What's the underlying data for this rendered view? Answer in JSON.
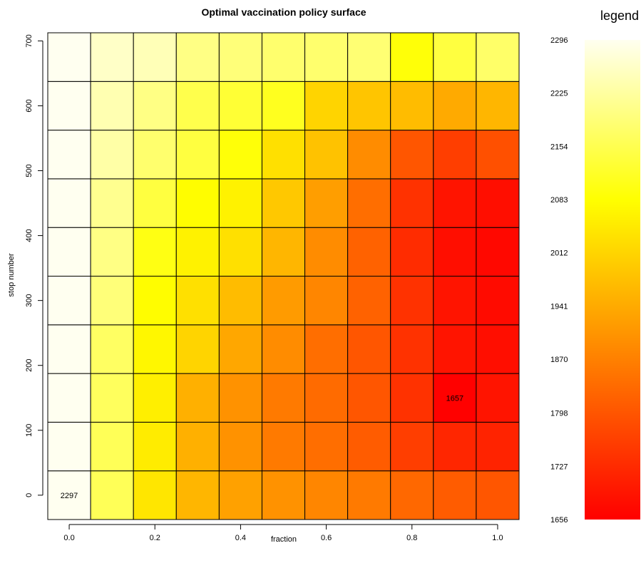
{
  "chart_data": {
    "type": "heatmap",
    "title": "Optimal vaccination policy surface",
    "xlabel": "fraction",
    "ylabel": "stop number",
    "x": [
      0.0,
      0.1,
      0.2,
      0.3,
      0.4,
      0.5,
      0.6,
      0.7,
      0.8,
      0.9,
      1.0
    ],
    "y": [
      0,
      75,
      150,
      225,
      300,
      375,
      450,
      525,
      600,
      675
    ],
    "xticks": [
      0.0,
      0.2,
      0.4,
      0.6,
      0.8,
      1.0
    ],
    "xtick_labels": [
      "0.0",
      "0.2",
      "0.4",
      "0.6",
      "0.8",
      "1.0"
    ],
    "yticks": [
      0,
      100,
      200,
      300,
      400,
      500,
      600,
      700
    ],
    "ytick_labels": [
      "0",
      "100",
      "200",
      "300",
      "400",
      "500",
      "600",
      "700"
    ],
    "xlim": [
      -0.05,
      1.05
    ],
    "ylim": [
      -37.5,
      712.5
    ],
    "values": [
      [
        2297,
        2160,
        2040,
        1960,
        1925,
        1900,
        1880,
        1860,
        1830,
        1810,
        1800
      ],
      [
        2296,
        2160,
        2050,
        1950,
        1900,
        1860,
        1840,
        1810,
        1760,
        1720,
        1715
      ],
      [
        2296,
        2165,
        2055,
        1950,
        1900,
        1860,
        1835,
        1800,
        1740,
        1657,
        1690
      ],
      [
        2296,
        2170,
        2070,
        2010,
        1935,
        1890,
        1840,
        1800,
        1740,
        1690,
        1680
      ],
      [
        2296,
        2190,
        2080,
        2030,
        1970,
        1915,
        1880,
        1820,
        1740,
        1690,
        1675
      ],
      [
        2296,
        2200,
        2100,
        2060,
        2030,
        1960,
        1890,
        1820,
        1730,
        1680,
        1670
      ],
      [
        2296,
        2210,
        2140,
        2080,
        2060,
        1990,
        1920,
        1840,
        1740,
        1690,
        1680
      ],
      [
        2296,
        2230,
        2180,
        2140,
        2090,
        2030,
        1980,
        1890,
        1800,
        1760,
        1790
      ],
      [
        2296,
        2240,
        2200,
        2150,
        2130,
        2110,
        2010,
        1985,
        1970,
        1940,
        1960
      ],
      [
        2296,
        2260,
        2245,
        2200,
        2190,
        2180,
        2180,
        2185,
        2090,
        2140,
        2175
      ]
    ],
    "annotations": [
      {
        "x": 0.0,
        "y": 0,
        "text": "2297"
      },
      {
        "x": 0.9,
        "y": 150,
        "text": "1657"
      }
    ],
    "colorbar": {
      "title": "legend",
      "min": 1656,
      "max": 2296,
      "tick_values": [
        1656,
        1727,
        1798,
        1870,
        1941,
        2012,
        2083,
        2154,
        2225,
        2296
      ],
      "tick_labels": [
        "1656",
        "1727",
        "1798",
        "1870",
        "1941",
        "2012",
        "2083",
        "2154",
        "2225",
        "2296"
      ],
      "palette": "heat",
      "colors": [
        "#ff0000",
        "#ff8000",
        "#ffff00",
        "#fffff0"
      ]
    },
    "grid": true
  }
}
